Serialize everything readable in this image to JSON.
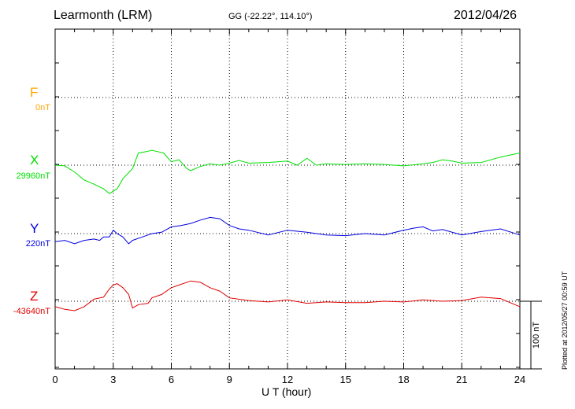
{
  "header": {
    "station": "Learmonth (LRM)",
    "coords": "GG (-22.22°, 114.10°)",
    "date": "2012/04/26"
  },
  "footer": {
    "plotted_at": "Plotted at 2012/05/27 00:59 UT"
  },
  "chart_data": {
    "type": "line",
    "xlabel": "U T (hour)",
    "xlim": [
      0,
      24
    ],
    "xticks": [
      "0",
      "3",
      "6",
      "9",
      "12",
      "15",
      "18",
      "21",
      "24"
    ],
    "grid": true,
    "scale_bar_label": "100 nT",
    "scale_bar_nT": 100,
    "series": [
      {
        "name": "F",
        "baseline": "0nT",
        "color": "#ffa500",
        "values": []
      },
      {
        "name": "X",
        "baseline": "29960nT",
        "color": "#00e000",
        "x": [
          0,
          0.5,
          1,
          1.5,
          2,
          2.5,
          2.8,
          3.2,
          3.5,
          4,
          4.3,
          4.7,
          5,
          5.3,
          5.6,
          6,
          6.4,
          6.8,
          7,
          7.5,
          8,
          8.5,
          9,
          9.5,
          10,
          11,
          12,
          12.5,
          13,
          13.5,
          14,
          15,
          16,
          17,
          18,
          19,
          19.5,
          20,
          20.5,
          21,
          22,
          23,
          24
        ],
        "y": [
          0,
          -1,
          -10,
          -22,
          -28,
          -35,
          -42,
          -35,
          -20,
          -5,
          18,
          20,
          22,
          20,
          18,
          5,
          8,
          -5,
          -8,
          -2,
          2,
          0,
          3,
          7,
          3,
          4,
          6,
          0,
          10,
          0,
          2,
          1,
          2,
          1,
          -1,
          2,
          4,
          8,
          6,
          3,
          4,
          12,
          18
        ]
      },
      {
        "name": "Y",
        "baseline": "220nT",
        "color": "#0000e0",
        "x": [
          0,
          0.5,
          1,
          1.5,
          2,
          2.3,
          2.5,
          2.8,
          3,
          3.2,
          3.5,
          3.8,
          4,
          4.5,
          5,
          5.5,
          6,
          6.5,
          7,
          7.5,
          8,
          8.5,
          9,
          9.5,
          10,
          11,
          12,
          13,
          14,
          15,
          16,
          17,
          18,
          18.5,
          19,
          19.5,
          20,
          21,
          22,
          23,
          24
        ],
        "y": [
          -12,
          -10,
          -15,
          -10,
          -8,
          -10,
          -5,
          -5,
          5,
          0,
          -5,
          -15,
          -10,
          -5,
          0,
          2,
          10,
          12,
          15,
          20,
          24,
          22,
          12,
          7,
          5,
          -2,
          5,
          2,
          -2,
          -3,
          0,
          -2,
          5,
          8,
          10,
          4,
          6,
          -2,
          3,
          7,
          -2
        ]
      },
      {
        "name": "Z",
        "baseline": "-43640nT",
        "color": "#e00000",
        "x": [
          0,
          0.5,
          1,
          1.5,
          2,
          2.5,
          2.8,
          3,
          3.2,
          3.5,
          3.8,
          4,
          4.3,
          4.8,
          5,
          5.5,
          6,
          6.5,
          7,
          7.5,
          8,
          8.5,
          9,
          10,
          11,
          12,
          13,
          14,
          15,
          16,
          17,
          18,
          19,
          20,
          21,
          22,
          23,
          24
        ],
        "y": [
          -8,
          -12,
          -14,
          -8,
          3,
          6,
          18,
          24,
          26,
          20,
          10,
          -10,
          -5,
          -3,
          5,
          10,
          20,
          25,
          30,
          28,
          20,
          15,
          5,
          1,
          -1,
          2,
          -3,
          -1,
          -2,
          -2,
          0,
          -1,
          2,
          0,
          1,
          6,
          4,
          -8
        ]
      }
    ]
  }
}
